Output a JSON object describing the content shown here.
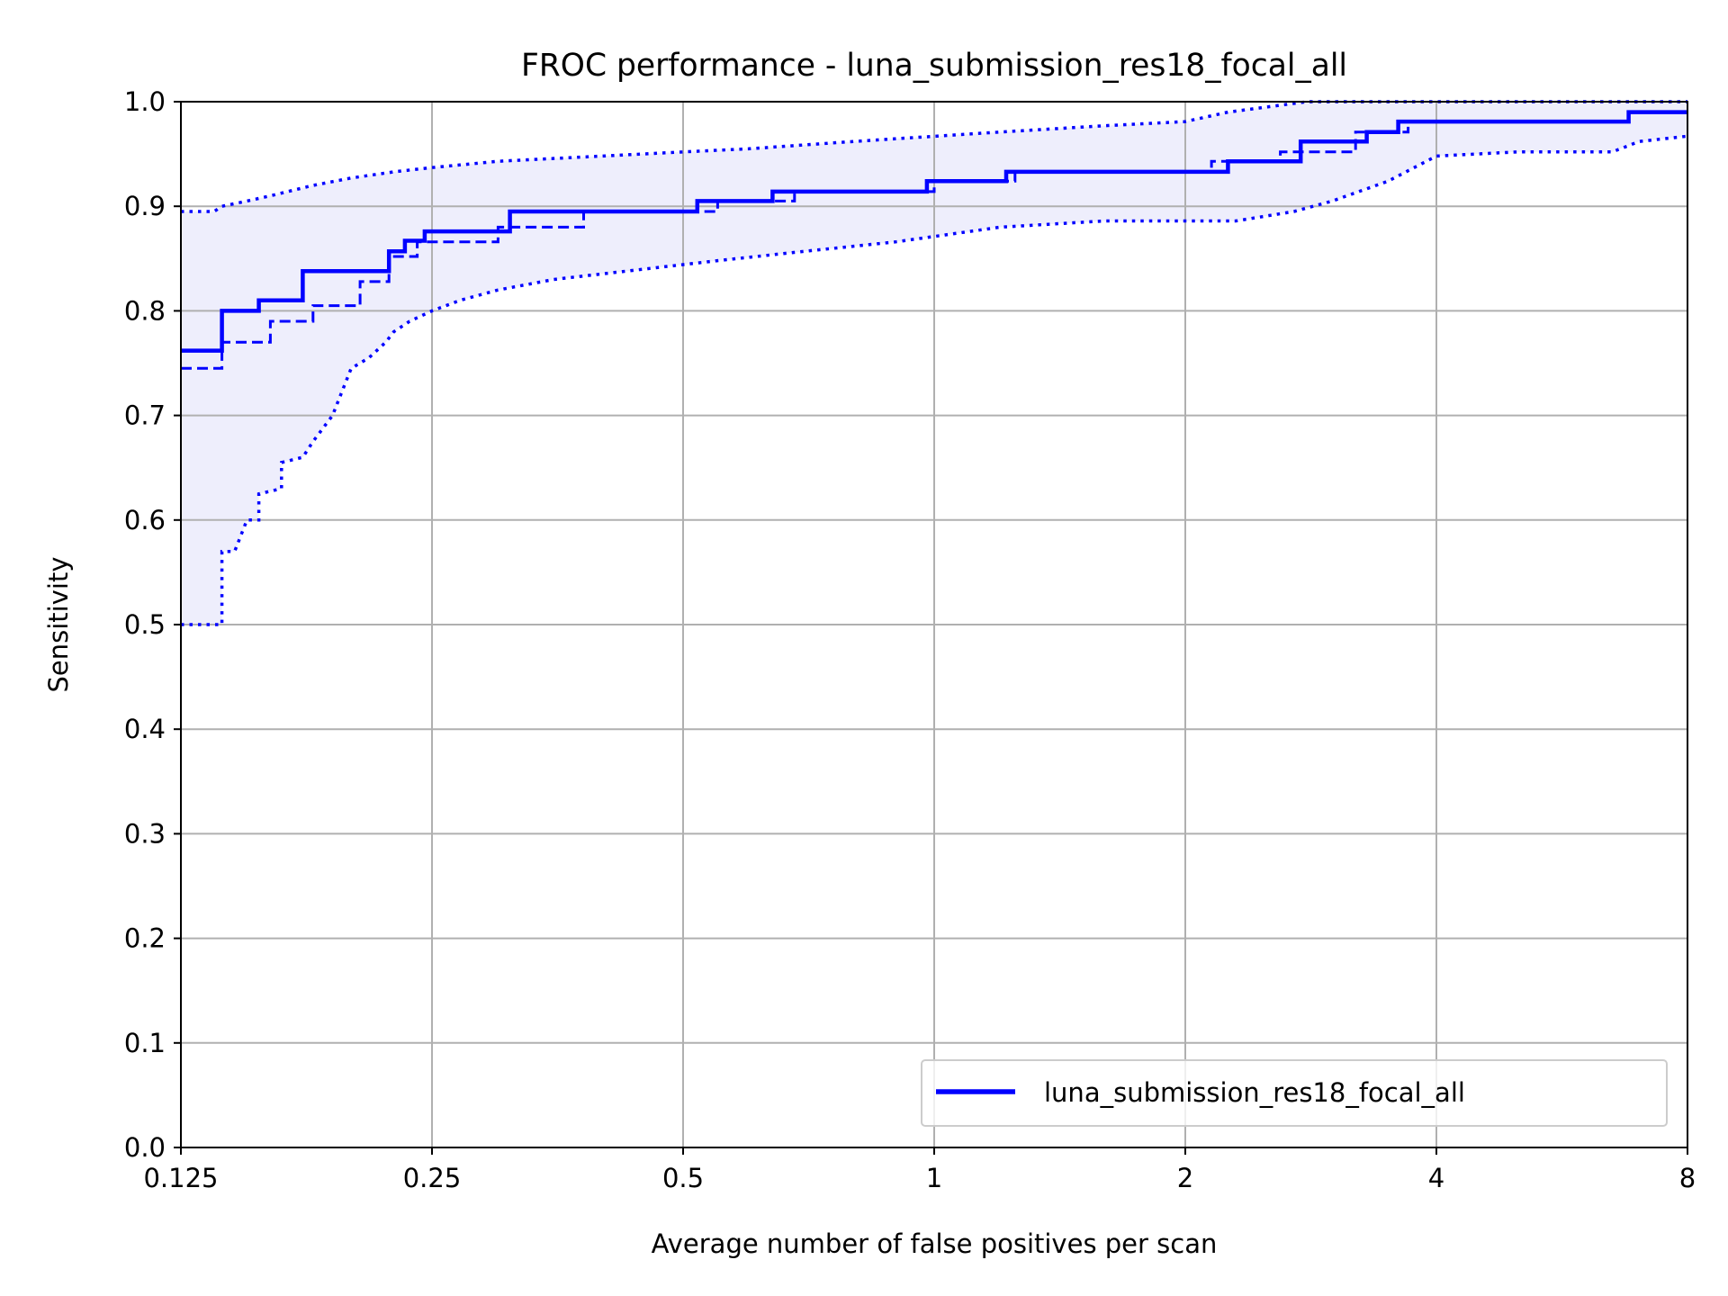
{
  "chart_data": {
    "type": "line",
    "title": "FROC performance - luna_submission_res18_focal_all",
    "xlabel": "Average number of false positives per scan",
    "ylabel": "Sensitivity",
    "x_scale": "log2",
    "xlim": [
      0.125,
      8
    ],
    "ylim": [
      0,
      1
    ],
    "x_ticks": [
      {
        "value": 0.125,
        "label": "0.125"
      },
      {
        "value": 0.25,
        "label": "0.25"
      },
      {
        "value": 0.5,
        "label": "0.5"
      },
      {
        "value": 1,
        "label": "1"
      },
      {
        "value": 2,
        "label": "2"
      },
      {
        "value": 4,
        "label": "4"
      },
      {
        "value": 8,
        "label": "8"
      }
    ],
    "y_ticks": [
      {
        "value": 0.0,
        "label": "0.0"
      },
      {
        "value": 0.1,
        "label": "0.1"
      },
      {
        "value": 0.2,
        "label": "0.2"
      },
      {
        "value": 0.3,
        "label": "0.3"
      },
      {
        "value": 0.4,
        "label": "0.4"
      },
      {
        "value": 0.5,
        "label": "0.5"
      },
      {
        "value": 0.6,
        "label": "0.6"
      },
      {
        "value": 0.7,
        "label": "0.7"
      },
      {
        "value": 0.8,
        "label": "0.8"
      },
      {
        "value": 0.9,
        "label": "0.9"
      },
      {
        "value": 1.0,
        "label": "1.0"
      }
    ],
    "grid": true,
    "legend_position": "lower-right",
    "colors": {
      "line": "#0000ff",
      "band": "#eeeefc",
      "grid": "#b0b0b0"
    },
    "series": [
      {
        "name": "luna_submission_res18_focal_all",
        "style": "solid",
        "in_legend": true,
        "x": [
          0.125,
          0.14,
          0.14,
          0.155,
          0.155,
          0.175,
          0.175,
          0.222,
          0.222,
          0.232,
          0.232,
          0.245,
          0.245,
          0.31,
          0.31,
          0.52,
          0.52,
          0.64,
          0.64,
          0.78,
          0.78,
          0.98,
          0.98,
          1.22,
          1.22,
          2.25,
          2.25,
          2.75,
          2.75,
          3.3,
          3.3,
          3.6,
          3.6,
          6.8,
          6.8,
          8
        ],
        "y": [
          0.762,
          0.762,
          0.8,
          0.8,
          0.81,
          0.81,
          0.838,
          0.838,
          0.857,
          0.857,
          0.867,
          0.867,
          0.876,
          0.876,
          0.895,
          0.895,
          0.905,
          0.905,
          0.914,
          0.914,
          0.914,
          0.914,
          0.924,
          0.924,
          0.933,
          0.933,
          0.943,
          0.943,
          0.962,
          0.962,
          0.971,
          0.971,
          0.981,
          0.981,
          0.99,
          0.99
        ]
      },
      {
        "style": "dashed",
        "in_legend": false,
        "x": [
          0.125,
          0.14,
          0.14,
          0.16,
          0.16,
          0.18,
          0.18,
          0.205,
          0.205,
          0.222,
          0.222,
          0.24,
          0.24,
          0.3,
          0.3,
          0.38,
          0.38,
          0.55,
          0.55,
          0.68,
          0.68,
          1.0,
          1.0,
          1.25,
          1.25,
          2.15,
          2.15,
          2.6,
          2.6,
          3.2,
          3.2,
          3.7,
          3.7,
          6.8,
          6.8,
          8
        ],
        "y": [
          0.745,
          0.745,
          0.77,
          0.77,
          0.79,
          0.79,
          0.805,
          0.805,
          0.828,
          0.828,
          0.852,
          0.852,
          0.866,
          0.866,
          0.88,
          0.88,
          0.895,
          0.895,
          0.905,
          0.905,
          0.914,
          0.914,
          0.924,
          0.924,
          0.933,
          0.933,
          0.943,
          0.943,
          0.952,
          0.952,
          0.971,
          0.971,
          0.981,
          0.981,
          0.99,
          0.99
        ]
      },
      {
        "style": "dotted",
        "in_legend": false,
        "x": [
          0.125,
          0.137,
          0.14,
          0.15,
          0.16,
          0.18,
          0.2,
          0.225,
          0.25,
          0.3,
          0.4,
          0.5,
          0.6,
          0.8,
          1.2,
          1.6,
          2.0,
          2.25,
          2.8,
          3.5,
          4.0,
          5.0,
          6.0,
          7.0,
          8.0
        ],
        "y": [
          0.895,
          0.895,
          0.9,
          0.905,
          0.91,
          0.92,
          0.927,
          0.933,
          0.937,
          0.943,
          0.948,
          0.952,
          0.955,
          0.962,
          0.971,
          0.977,
          0.981,
          0.99,
          1.0,
          1.0,
          1.0,
          1.0,
          1.0,
          1.0,
          1.0
        ]
      },
      {
        "style": "dotted",
        "in_legend": false,
        "x": [
          0.125,
          0.14,
          0.14,
          0.145,
          0.15,
          0.155,
          0.155,
          0.165,
          0.165,
          0.175,
          0.18,
          0.19,
          0.2,
          0.21,
          0.22,
          0.225,
          0.235,
          0.25,
          0.27,
          0.3,
          0.35,
          0.45,
          0.55,
          0.7,
          0.9,
          1.2,
          1.6,
          2.3,
          2.7,
          3.0,
          3.5,
          4.0,
          5.0,
          6.5,
          7.0,
          8.0
        ],
        "y": [
          0.5,
          0.5,
          0.57,
          0.57,
          0.6,
          0.6,
          0.625,
          0.63,
          0.655,
          0.66,
          0.675,
          0.7,
          0.745,
          0.755,
          0.77,
          0.78,
          0.79,
          0.8,
          0.81,
          0.82,
          0.83,
          0.84,
          0.848,
          0.857,
          0.866,
          0.88,
          0.886,
          0.886,
          0.895,
          0.905,
          0.924,
          0.948,
          0.952,
          0.952,
          0.962,
          0.967
        ]
      }
    ]
  }
}
